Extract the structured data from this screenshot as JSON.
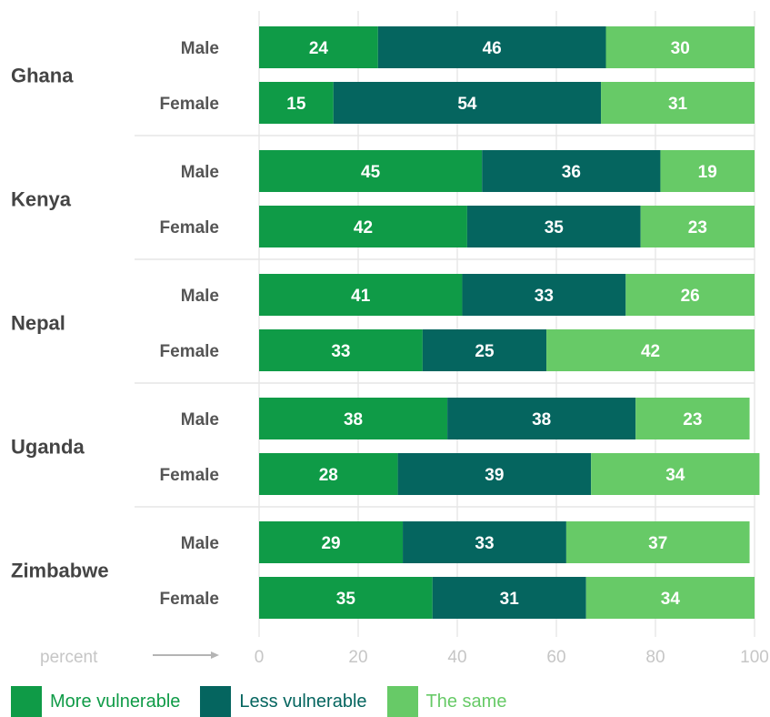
{
  "chart_data": {
    "type": "bar",
    "orientation": "horizontal",
    "stacked": true,
    "countries": [
      "Ghana",
      "Kenya",
      "Nepal",
      "Uganda",
      "Zimbabwe"
    ],
    "groups": [
      "Male",
      "Female"
    ],
    "series": [
      {
        "name": "More vulnerable",
        "color": "#0f9b47",
        "values": [
          [
            24,
            15
          ],
          [
            45,
            42
          ],
          [
            41,
            33
          ],
          [
            38,
            28
          ],
          [
            29,
            35
          ]
        ]
      },
      {
        "name": "Less vulnerable",
        "color": "#05655f",
        "values": [
          [
            46,
            54
          ],
          [
            36,
            35
          ],
          [
            33,
            25
          ],
          [
            38,
            39
          ],
          [
            33,
            31
          ]
        ]
      },
      {
        "name": "The same",
        "color": "#67ca67",
        "values": [
          [
            30,
            31
          ],
          [
            19,
            23
          ],
          [
            26,
            42
          ],
          [
            23,
            34
          ],
          [
            37,
            34
          ]
        ]
      }
    ],
    "xlim": [
      0,
      100
    ],
    "xticks": [
      0,
      20,
      40,
      60,
      80,
      100
    ],
    "xlabel": "percent",
    "grid": true,
    "legend_position": "bottom-left"
  }
}
